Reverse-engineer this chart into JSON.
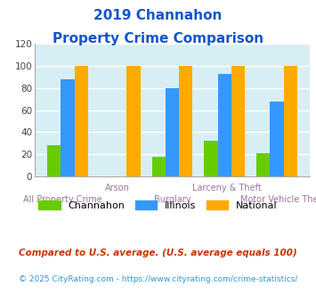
{
  "title_line1": "2019 Channahon",
  "title_line2": "Property Crime Comparison",
  "categories": [
    "All Property Crime",
    "Arson",
    "Burglary",
    "Larceny & Theft",
    "Motor Vehicle Theft"
  ],
  "channahon": [
    28,
    0,
    18,
    32,
    21
  ],
  "illinois": [
    88,
    0,
    80,
    93,
    68
  ],
  "national": [
    100,
    100,
    100,
    100,
    100
  ],
  "color_channahon": "#66cc00",
  "color_illinois": "#3399ff",
  "color_national": "#ffaa00",
  "ylabel_max": 120,
  "ylabel_step": 20,
  "bg_color": "#d8eef5",
  "title_color": "#1155cc",
  "xlabel_color": "#997799",
  "legend_labels": [
    "Channahon",
    "Illinois",
    "National"
  ],
  "footnote1": "Compared to U.S. average. (U.S. average equals 100)",
  "footnote2": "© 2025 CityRating.com - https://www.cityrating.com/crime-statistics/",
  "footnote1_color": "#cc3300",
  "footnote2_color": "#3399cc",
  "row1_indices": [
    1,
    3
  ],
  "row2_indices": [
    0,
    2,
    4
  ]
}
